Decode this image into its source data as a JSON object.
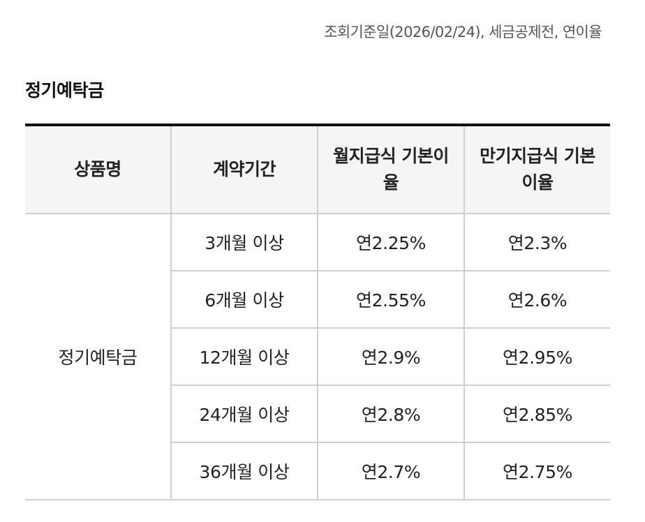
{
  "basis_note": "조회기준일(2026/02/24), 세금공제전, 연이율",
  "section_title": "정기예탁금",
  "table": {
    "headers": [
      "상품명",
      "계약기간",
      "월지급식 기본이율",
      "만기지급식 기본이율"
    ],
    "product_name": "정기예탁금",
    "rows": [
      {
        "period": "3개월 이상",
        "monthly": "연2.25%",
        "maturity": "연2.3%"
      },
      {
        "period": "6개월 이상",
        "monthly": "연2.55%",
        "maturity": "연2.6%"
      },
      {
        "period": "12개월 이상",
        "monthly": "연2.9%",
        "maturity": "연2.95%"
      },
      {
        "period": "24개월 이상",
        "monthly": "연2.8%",
        "maturity": "연2.85%"
      },
      {
        "period": "36개월 이상",
        "monthly": "연2.7%",
        "maturity": "연2.75%"
      }
    ]
  }
}
